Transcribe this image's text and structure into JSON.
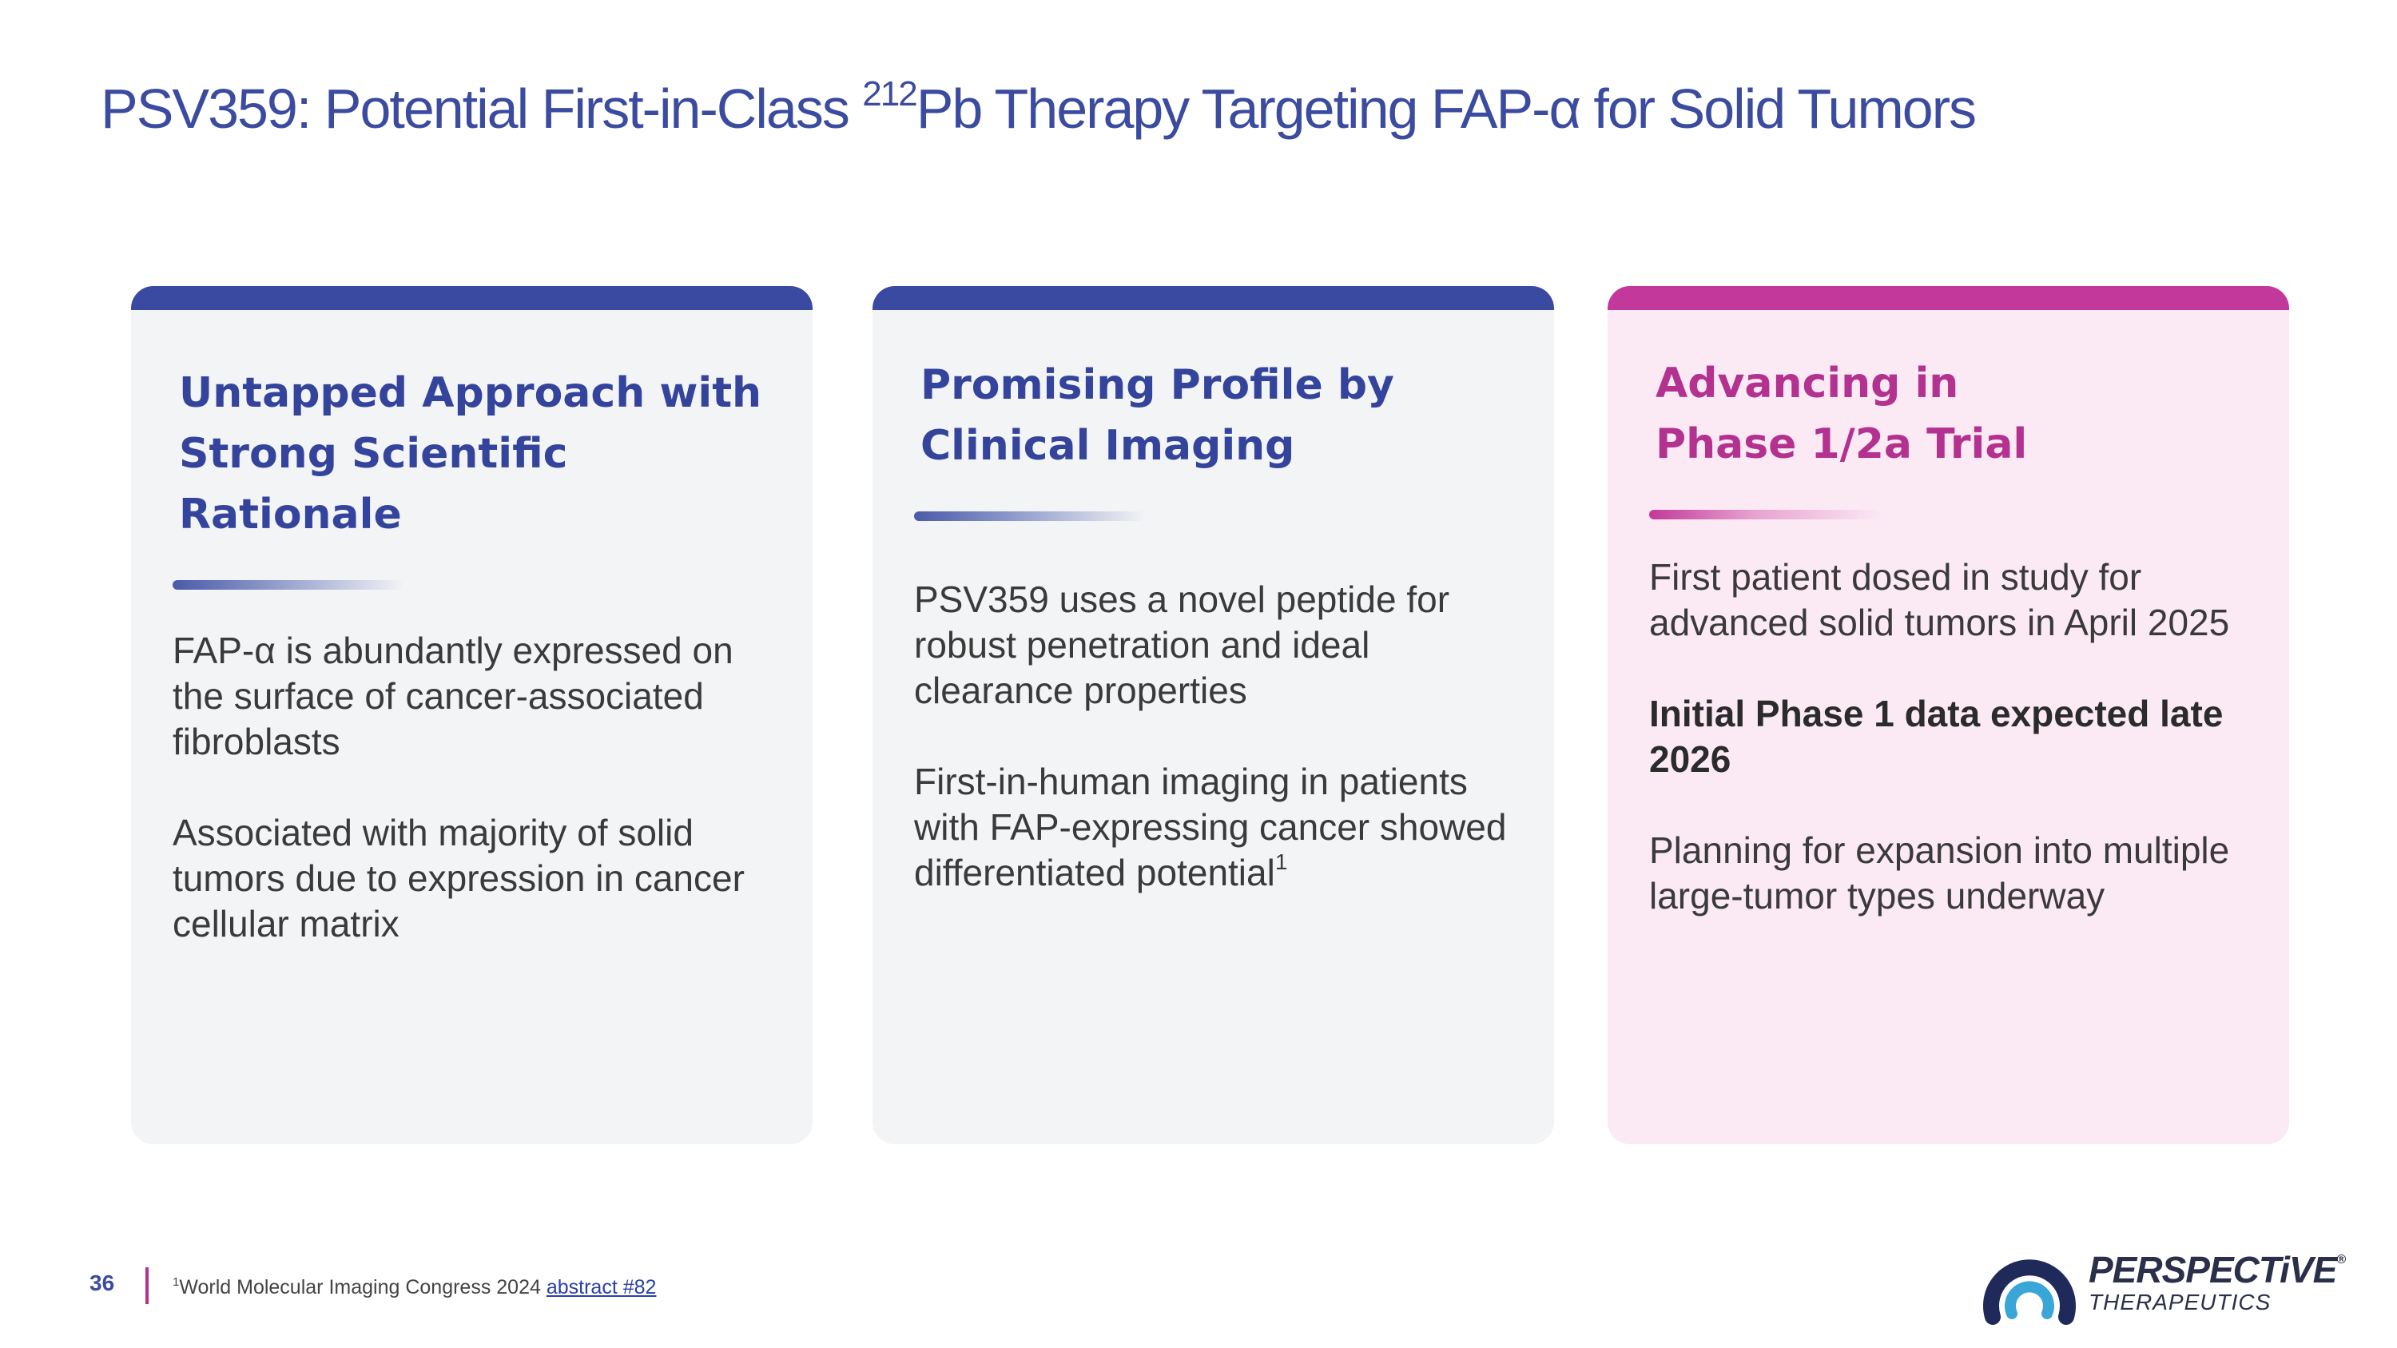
{
  "header": {
    "title_parts": [
      "PSV359: Potential First-in-Class ",
      "212",
      "Pb Therapy Targeting FAP-α for Solid Tumors"
    ]
  },
  "cards": [
    {
      "heading_lines": [
        "Untapped Approach with",
        "Strong Scientific Rationale"
      ],
      "paragraphs": [
        {
          "text": "FAP-α is abundantly expressed on the surface of cancer-associated fibroblasts"
        },
        {
          "text": "Associated with majority of solid tumors due to expression in cancer cellular matrix"
        }
      ]
    },
    {
      "heading_lines": [
        "Promising Profile by",
        "Clinical Imaging"
      ],
      "paragraphs": [
        {
          "text": "PSV359 uses a novel peptide for robust penetration and ideal clearance properties"
        },
        {
          "text": "First-in-human imaging in patients with FAP-expressing cancer showed differentiated potential",
          "footnote_ref": "1"
        }
      ]
    },
    {
      "heading_lines": [
        "Advancing in",
        "Phase 1/2a Trial"
      ],
      "paragraphs": [
        {
          "text": "First patient dosed in study for advanced solid tumors in April 2025"
        },
        {
          "text": "Initial Phase 1 data expected late 2026"
        },
        {
          "text": "Planning for expansion into multiple large-tumor types underway"
        }
      ]
    }
  ],
  "footer": {
    "page_number": "36",
    "footnote_mark": "1",
    "footnote_text": "World Molecular Imaging Congress 2024 ",
    "footnote_link": "abstract #82",
    "logo_name": "PERSPECTiVE",
    "logo_registered": "®",
    "logo_sub": "THERAPEUTICS"
  }
}
